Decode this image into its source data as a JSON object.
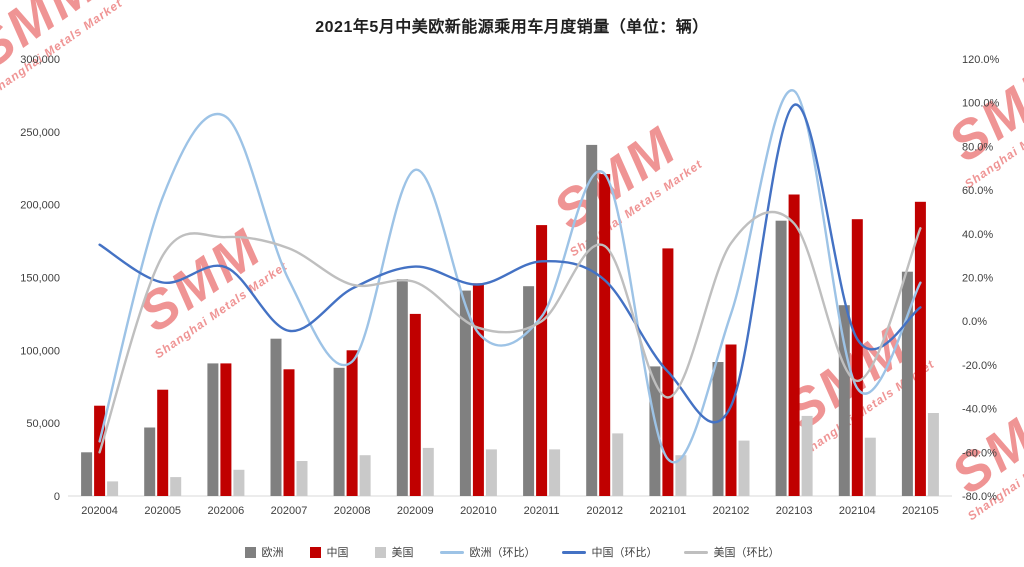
{
  "watermark": {
    "brand": "SMM",
    "subtitle": "Shanghai Metals Market"
  },
  "chart_data": {
    "type": "combo-bar-line",
    "title": "2021年5月中美欧新能源乘用车月度销量（单位：辆）",
    "categories": [
      "202004",
      "202005",
      "202006",
      "202007",
      "202008",
      "202009",
      "202010",
      "202011",
      "202012",
      "202101",
      "202102",
      "202103",
      "202104",
      "202105"
    ],
    "bar_series": [
      {
        "id": "europe",
        "name": "欧洲",
        "color": "#808080",
        "axis": "left",
        "values": [
          30000,
          47000,
          91000,
          108000,
          88000,
          149000,
          141000,
          144000,
          241000,
          89000,
          92000,
          189000,
          131000,
          154000
        ]
      },
      {
        "id": "china",
        "name": "中国",
        "color": "#c00000",
        "axis": "left",
        "values": [
          62000,
          73000,
          91000,
          87000,
          100000,
          125000,
          146000,
          186000,
          221000,
          170000,
          104000,
          207000,
          190000,
          202000
        ]
      },
      {
        "id": "usa",
        "name": "美国",
        "color": "#c9c9c9",
        "axis": "left",
        "values": [
          10000,
          13000,
          18000,
          24000,
          28000,
          33000,
          32000,
          32000,
          43000,
          28000,
          38000,
          55000,
          40000,
          57000
        ]
      }
    ],
    "line_series": [
      {
        "id": "europe-mom",
        "name": "欧洲（环比）",
        "color": "#9dc3e6",
        "axis": "right",
        "unit": "%",
        "values": [
          -55,
          56.7,
          93.6,
          18.7,
          -18.5,
          69.3,
          -5.4,
          2.1,
          67.4,
          -63.1,
          3.4,
          105.4,
          -30.7,
          17.6
        ]
      },
      {
        "id": "china-mom",
        "name": "中国（环比）",
        "color": "#4472c4",
        "axis": "right",
        "unit": "%",
        "values": [
          35,
          17.7,
          24.7,
          -4.4,
          14.9,
          25,
          16.8,
          27.4,
          18.8,
          -23.1,
          -38.8,
          99,
          -8.2,
          6.3
        ]
      },
      {
        "id": "usa-mom",
        "name": "美国（环比）",
        "color": "#bfbfbf",
        "axis": "right",
        "unit": "%",
        "values": [
          -60,
          30,
          38.5,
          33.3,
          16.7,
          17.9,
          -3,
          0,
          34.4,
          -34.9,
          35.7,
          44.7,
          -27.3,
          42.5
        ]
      }
    ],
    "left_axis": {
      "min": 0,
      "max": 300000,
      "step": 50000,
      "tick_labels": [
        "300,000",
        "250,000",
        "200,000",
        "150,000",
        "100,000",
        "50,000",
        "0"
      ]
    },
    "right_axis": {
      "min": -80,
      "max": 120,
      "step": 20,
      "tick_labels": [
        "120.0%",
        "100.0%",
        "80.0%",
        "60.0%",
        "40.0%",
        "20.0%",
        "0.0%",
        "-20.0%",
        "-40.0%",
        "-60.0%",
        "-80.0%"
      ]
    },
    "legend_position": "bottom",
    "grid": "off"
  }
}
